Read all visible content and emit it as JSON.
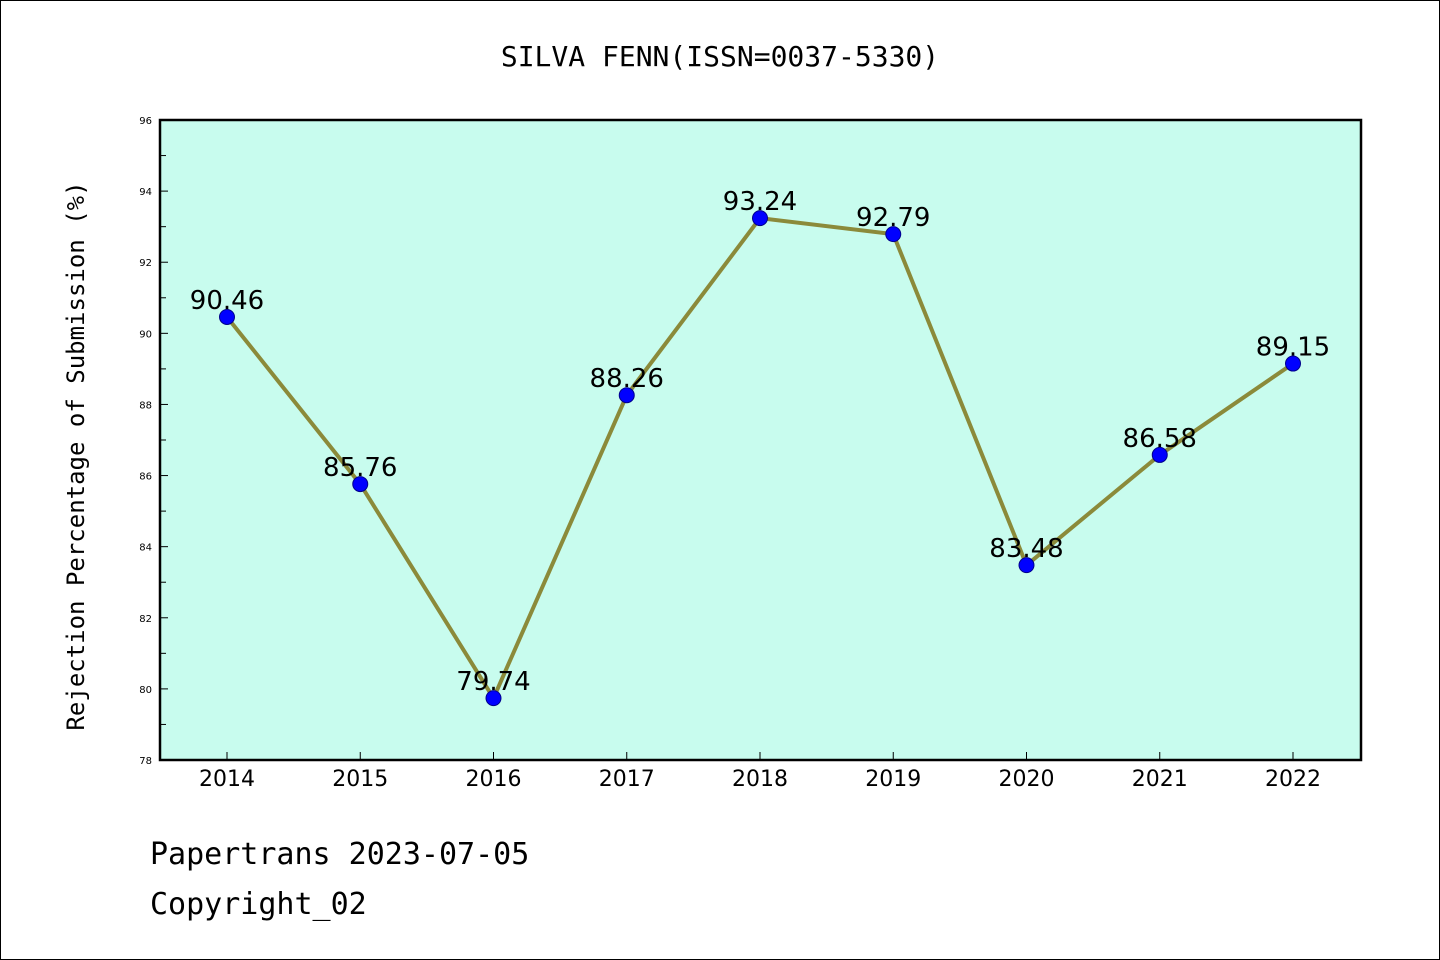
{
  "chart_data": {
    "type": "line",
    "title": "SILVA FENN(ISSN=0037-5330)",
    "xlabel": "",
    "ylabel": "Rejection Percentage of Submission (%)",
    "categories": [
      "2014",
      "2015",
      "2016",
      "2017",
      "2018",
      "2019",
      "2020",
      "2021",
      "2022"
    ],
    "values": [
      90.46,
      85.76,
      79.74,
      88.26,
      93.24,
      92.79,
      83.48,
      86.58,
      89.15
    ],
    "data_labels": [
      "90.46",
      "85.76",
      "79.74",
      "88.26",
      "93.24",
      "92.79",
      "83.48",
      "86.58",
      "89.15"
    ],
    "ylim": [
      78,
      96
    ],
    "yticks": [
      "78",
      "80",
      "82",
      "84",
      "86",
      "88",
      "90",
      "92",
      "94",
      "96"
    ],
    "grid": false,
    "colors": {
      "plot_background": "#c8fcee",
      "line": "#8b8a3a",
      "marker": "#0000ff"
    }
  },
  "footer": {
    "line1": "Papertrans 2023-07-05",
    "line2": "Copyright_02"
  }
}
